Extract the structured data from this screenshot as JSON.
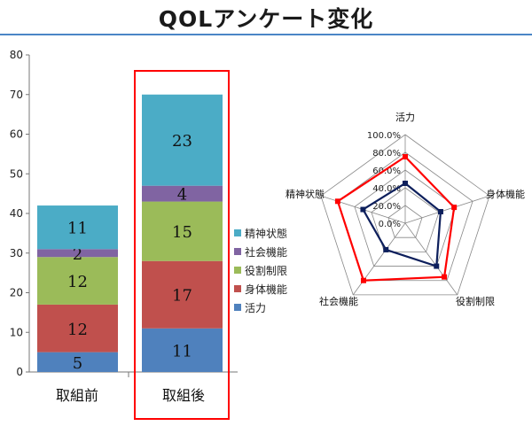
{
  "title": "QOLアンケート変化",
  "colors": {
    "活力": "#4f81bd",
    "身体機能": "#c0504d",
    "役割制限": "#9bbb59",
    "社会機能": "#8064a2",
    "精神状態": "#4bacc6",
    "highlight": "#ff0000",
    "radar_before": "#0d1f5c",
    "radar_after": "#ff0000"
  },
  "chart_data": [
    {
      "type": "bar",
      "stacked": true,
      "categories": [
        "取組前",
        "取組後"
      ],
      "series": [
        {
          "name": "活力",
          "values": [
            5,
            11
          ]
        },
        {
          "name": "身体機能",
          "values": [
            12,
            17
          ]
        },
        {
          "name": "役割制限",
          "values": [
            12,
            15
          ]
        },
        {
          "name": "社会機能",
          "values": [
            2,
            4
          ]
        },
        {
          "name": "精神状態",
          "values": [
            11,
            23
          ]
        }
      ],
      "ylim": [
        0,
        80
      ],
      "yticks": [
        0,
        10,
        20,
        30,
        40,
        50,
        60,
        70,
        80
      ],
      "grid": false,
      "legend": "right",
      "highlight_category": "取組後"
    },
    {
      "type": "radar",
      "axes": [
        "活力",
        "身体機能",
        "役割制限",
        "社会機能",
        "精神状態"
      ],
      "rticks": [
        "0.0%",
        "20.0%",
        "40.0%",
        "60.0%",
        "80.0%",
        "100.0%"
      ],
      "rlim": [
        0,
        100
      ],
      "series": [
        {
          "values": [
            45,
            42,
            60,
            37,
            50
          ]
        },
        {
          "values": [
            75,
            58,
            75,
            80,
            80
          ]
        }
      ]
    }
  ]
}
